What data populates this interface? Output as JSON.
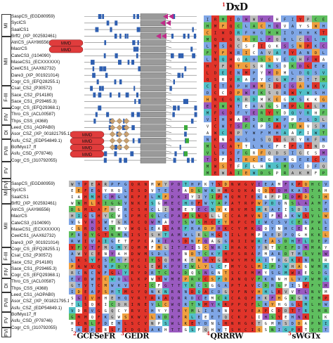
{
  "upper_names": [
    "SaspCS_(EGD80959)",
    "SycICS",
    "SaalCS1",
    "Brff2_(XP_002592461)",
    "AtriCS_(AAY86556)",
    "MacrCS",
    "CateCS3_(I104090)",
    "MaseCS1_(ECXXXXXX)",
    "CeelCS1_(AAX62732)",
    "Dare3_(XP_001921014)",
    "Cogr_CS_(EFQ28255.1)",
    "CsaI_CS2_(P30572)",
    "Sace_CS2_(P14180)",
    "Sace_CS1_(P29465.3)",
    "Cogr_CS_(EFQ29368.1)",
    "Thro_CS_(ACL00587)",
    "Thps_CSS_(4368)",
    "Leed_CS1_(AOPAB0)",
    "Asor_CSZ_(XP_001821795.1)",
    "Asfu_CSZ_(EDP54849.1)",
    "BofMyo17_ff",
    "Asfu_CSD_(P78746)",
    "Cogr_CS_(310792055)"
  ],
  "lower_names": [
    "SaspCS_(EGD80959)",
    "SycICS",
    "SaalCS1",
    "Brff2_(XP_002592461)",
    "AtriCS_(AAY86556)",
    "MacrCS",
    "CateCS3_(I104090)",
    "MaseCS1_(ECXXXXXX)",
    "CeelCS1_(AAX62732)",
    "Dare3_(XP_001921014)",
    "Cogr_CS_(EFQ28255.1)",
    "CsaI_CS2_(P30572)",
    "Sace_CS2_(P14180)",
    "Sace_CS1_(P29465.3)",
    "Cogr_CS_(EFQ29368.1)",
    "Thro_CS_(ACL00587)",
    "Thps_CSS_(4368)",
    "Leed_CS1_(AOPAB0)",
    "Asor_CSZ_(XP_001821795.1)",
    "Asfu_CSZ_(EDP54849.1)",
    "BofMyo17_ff",
    "Asfu_CSD_(P78746)",
    "Cogr_CS_(310792055)"
  ],
  "class_labels": [
    "MI",
    "MII",
    "F-III",
    "FIV",
    "DI",
    "FVII",
    "FV",
    "FVI"
  ],
  "domain_label": "MMD",
  "motifs": [
    {
      "num": "1",
      "text": "DxD"
    },
    {
      "num": "2",
      "text": "GCFSeFR"
    },
    {
      "num": "3",
      "text": "GEDR"
    },
    {
      "num": "4",
      "text": "QRRRW"
    },
    {
      "num": "5",
      "text": "sWGTx"
    }
  ],
  "colors": {
    "motif_number": "#d42020",
    "mmd_fill": "#e03c3c",
    "exon_blue": "#2f5fb0",
    "arrow_magenta": "#c02a8a",
    "diamond_tan": "#c8a070",
    "green_mark": "#3caa3c",
    "aln_blue": "#7fa6e6",
    "aln_red": "#e0342a",
    "aln_purple": "#9a5ac0",
    "aln_green": "#5fbf5f",
    "aln_orange": "#f0a040",
    "aln_cyan": "#52c0c8",
    "aln_gray": "#bdbdbd"
  }
}
